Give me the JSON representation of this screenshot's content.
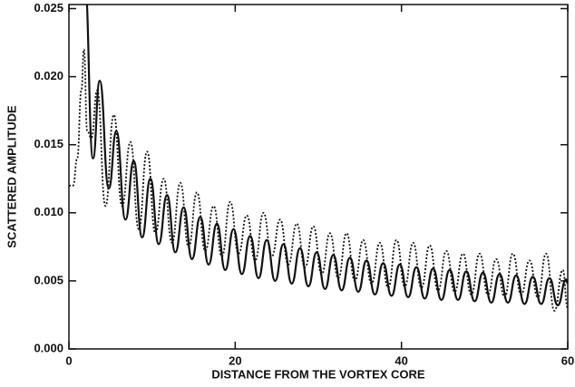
{
  "chart_data": {
    "type": "line",
    "xlabel": "DISTANCE FROM THE VORTEX CORE",
    "ylabel": "SCATTERED AMPLITUDE",
    "xlim": [
      0,
      60
    ],
    "ylim": [
      0,
      0.0253
    ],
    "xticks": [
      0,
      20,
      40,
      60
    ],
    "yticks": [
      {
        "value": 0,
        "label": "0.000"
      },
      0.005,
      {
        "value": 0.01,
        "label": "0.010"
      },
      0.015,
      {
        "value": 0.02,
        "label": "0.020"
      },
      0.025
    ],
    "grid": false,
    "series": [
      {
        "color": "#111111",
        "style": "solid",
        "x": [
          1.9,
          2.9,
          3.7,
          4.8,
          5.7,
          6.8,
          7.8,
          8.8,
          9.8,
          10.8,
          11.8,
          12.8,
          13.8,
          14.8,
          15.8,
          16.8,
          17.8,
          18.8,
          19.8,
          20.8,
          21.8,
          22.8,
          23.8,
          24.8,
          25.8,
          26.8,
          27.8,
          28.8,
          29.8,
          30.8,
          31.8,
          32.8,
          33.8,
          34.8,
          35.8,
          36.8,
          37.8,
          38.8,
          39.8,
          40.8,
          41.8,
          42.8,
          43.8,
          44.8,
          45.8,
          46.8,
          47.8,
          48.8,
          49.8,
          50.8,
          51.8,
          52.8,
          53.8,
          54.8,
          55.8,
          56.8,
          57.8,
          58.8,
          59.8,
          60
        ],
        "values": [
          0.027,
          0.014,
          0.0197,
          0.0118,
          0.016,
          0.0095,
          0.0138,
          0.0082,
          0.0125,
          0.0077,
          0.0113,
          0.0071,
          0.0104,
          0.0066,
          0.0097,
          0.0062,
          0.0092,
          0.0058,
          0.0088,
          0.0055,
          0.0083,
          0.0052,
          0.008,
          0.005,
          0.0077,
          0.0048,
          0.0074,
          0.0046,
          0.0071,
          0.0044,
          0.0069,
          0.0043,
          0.0067,
          0.0042,
          0.0065,
          0.004,
          0.0063,
          0.0039,
          0.0062,
          0.0038,
          0.006,
          0.0037,
          0.0059,
          0.0036,
          0.0058,
          0.0036,
          0.0057,
          0.0035,
          0.0056,
          0.0034,
          0.0055,
          0.0034,
          0.0054,
          0.0033,
          0.0053,
          0.0033,
          0.0052,
          0.0032,
          0.0051,
          0.0048
        ]
      },
      {
        "color": "#111111",
        "style": "dotted",
        "x": [
          0,
          0.5,
          1,
          1.5,
          1.8,
          2.2,
          2.7,
          3.4,
          4.4,
          5.4,
          6.4,
          7.4,
          8.4,
          9.4,
          10.4,
          11.4,
          12.4,
          13.4,
          14.4,
          15.4,
          16.4,
          17.4,
          18.4,
          19.4,
          20.4,
          21.4,
          22.4,
          23.4,
          24.4,
          25.4,
          26.4,
          27.4,
          28.4,
          29.4,
          30.4,
          31.4,
          32.4,
          33.4,
          34.4,
          35.4,
          36.4,
          37.4,
          38.4,
          39.4,
          40.4,
          41.4,
          42.4,
          43.4,
          44.4,
          45.4,
          46.4,
          47.4,
          48.4,
          49.4,
          50.4,
          51.4,
          52.4,
          53.4,
          54.4,
          55.4,
          56.4,
          57.4,
          58.4,
          59.4,
          60
        ],
        "values": [
          0.012,
          0.012,
          0.014,
          0.019,
          0.022,
          0.016,
          0.0155,
          0.019,
          0.0105,
          0.0172,
          0.0105,
          0.0152,
          0.0088,
          0.0145,
          0.0085,
          0.0125,
          0.0078,
          0.0122,
          0.0075,
          0.0115,
          0.0072,
          0.0105,
          0.0068,
          0.0108,
          0.007,
          0.0098,
          0.0065,
          0.01,
          0.0068,
          0.0095,
          0.0062,
          0.0092,
          0.006,
          0.009,
          0.0055,
          0.0085,
          0.0052,
          0.0085,
          0.005,
          0.008,
          0.0048,
          0.0078,
          0.0045,
          0.008,
          0.0046,
          0.0078,
          0.0045,
          0.0076,
          0.0043,
          0.0072,
          0.0042,
          0.007,
          0.004,
          0.007,
          0.004,
          0.0066,
          0.0038,
          0.007,
          0.004,
          0.0065,
          0.0038,
          0.007,
          0.0028,
          0.0058,
          0.003
        ]
      }
    ]
  }
}
